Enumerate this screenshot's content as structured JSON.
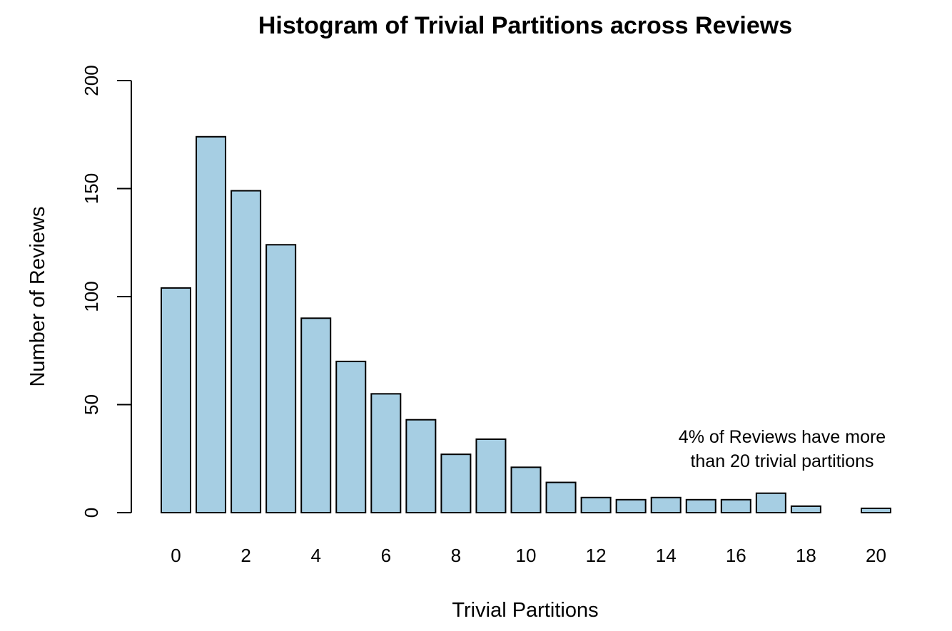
{
  "chart_data": {
    "type": "bar",
    "title": "Histogram of Trivial Partitions across Reviews",
    "xlabel": "Trivial Partitions",
    "ylabel": "Number of Reviews",
    "categories": [
      0,
      1,
      2,
      3,
      4,
      5,
      6,
      7,
      8,
      9,
      10,
      11,
      12,
      13,
      14,
      15,
      16,
      17,
      18,
      19,
      20
    ],
    "values": [
      104,
      174,
      149,
      124,
      90,
      70,
      55,
      43,
      27,
      34,
      21,
      14,
      7,
      6,
      7,
      6,
      6,
      9,
      3,
      0,
      2
    ],
    "x_tick_labels": [
      "0",
      "2",
      "4",
      "6",
      "8",
      "10",
      "12",
      "14",
      "16",
      "18",
      "20"
    ],
    "y_tick_labels": [
      "0",
      "50",
      "100",
      "150",
      "200"
    ],
    "ylim": [
      0,
      200
    ],
    "grid": false,
    "bar_color": "#a6cee3",
    "annotation": {
      "line1": "4% of Reviews have more",
      "line2": "than 20 trivial partitions"
    }
  }
}
